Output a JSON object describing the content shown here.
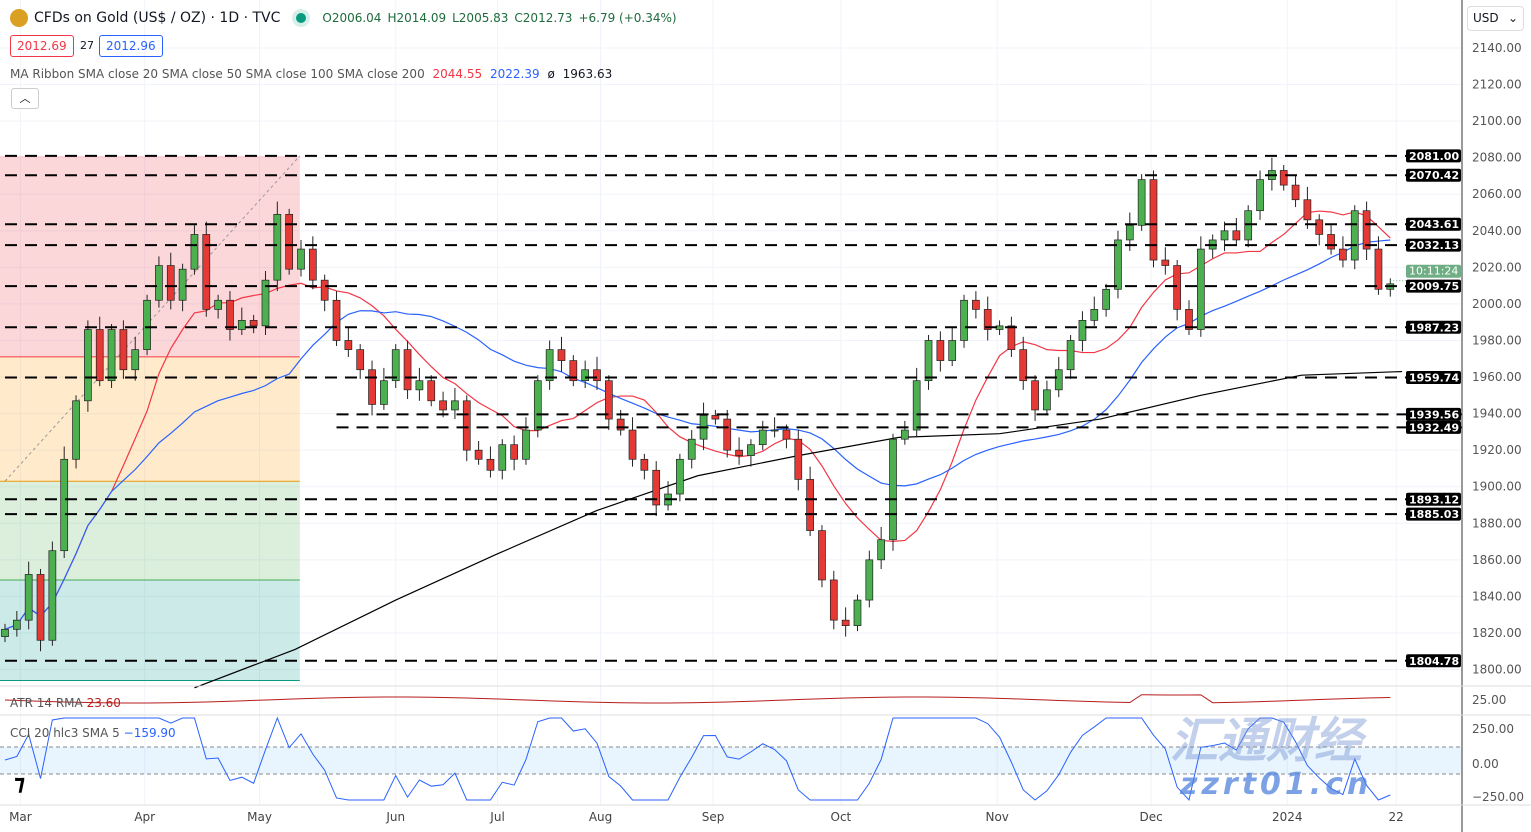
{
  "header": {
    "title": "CFDs on Gold (US$ / OZ) · 1D · TVC",
    "open": "O2006.04",
    "high": "H2014.09",
    "low": "L2005.83",
    "close": "C2012.73",
    "change": "+6.79 (+0.34%)",
    "bid": "2012.69",
    "spread": "27",
    "ask": "2012.96"
  },
  "ma_ribbon": {
    "label": "MA Ribbon SMA close 20 SMA close 50 SMA close 100 SMA close 200",
    "v1": "2044.55",
    "v2": "2022.39",
    "v3": "ø",
    "v4": "1963.63"
  },
  "collapse_icon": "chevron-up",
  "currency": "USD",
  "colors": {
    "up": "#4caf50",
    "down": "#e53935",
    "sma20": "#f23645",
    "sma50": "#2962ff",
    "sma200": "#000000",
    "countdown": "#6fae85"
  },
  "countdown": "10:11:24",
  "atr": {
    "label": "ATR 14 RMA",
    "value": "23.60",
    "axis": "25.00"
  },
  "cci": {
    "label": "CCI 20 hlc3 SMA 5",
    "value": "−159.90",
    "axis": [
      "250.00",
      "0.00",
      "−250.00"
    ]
  },
  "watermark": {
    "text": "zzrt01.cn",
    "cn": "汇通财经"
  },
  "chart_data": {
    "type": "candlestick",
    "ylim": [
      1790,
      2150
    ],
    "y_ticks": [
      2140,
      2120,
      2100,
      2080,
      2060,
      2040,
      2020,
      2000,
      1980,
      1960,
      1940,
      1920,
      1900,
      1880,
      1860,
      1840,
      1820,
      1800
    ],
    "x_ticks": [
      {
        "label": "Mar",
        "i": 1.3
      },
      {
        "label": "Apr",
        "i": 11.8
      },
      {
        "label": "May",
        "i": 21.5
      },
      {
        "label": "Jun",
        "i": 33
      },
      {
        "label": "Jul",
        "i": 41.6
      },
      {
        "label": "Aug",
        "i": 50.3
      },
      {
        "label": "Sep",
        "i": 59.8
      },
      {
        "label": "Oct",
        "i": 70.6
      },
      {
        "label": "Nov",
        "i": 83.8
      },
      {
        "label": "Dec",
        "i": 96.8
      },
      {
        "label": "2024",
        "i": 108.3
      },
      {
        "label": "22",
        "i": 117.5
      }
    ],
    "closes": [
      1822,
      1827,
      1852,
      1816,
      1865,
      1915,
      1947,
      1986,
      1958,
      1986,
      1964,
      1975,
      2002,
      2021,
      2002,
      2019,
      2038,
      1997,
      2002,
      1986,
      1991,
      1988,
      2013,
      2049,
      2019,
      2030,
      2013,
      2002,
      1980,
      1975,
      1964,
      1945,
      1958,
      1975,
      1953,
      1958,
      1947,
      1942,
      1947,
      1920,
      1915,
      1909,
      1923,
      1915,
      1931,
      1958,
      1975,
      1969,
      1958,
      1964,
      1958,
      1937,
      1931,
      1915,
      1909,
      1890,
      1896,
      1915,
      1926,
      1939,
      1937,
      1920,
      1917,
      1923,
      1931,
      1931,
      1926,
      1904,
      1876,
      1849,
      1827,
      1824,
      1838,
      1860,
      1871,
      1926,
      1931,
      1958,
      1980,
      1969,
      1980,
      2002,
      1997,
      1986,
      1988,
      1975,
      1958,
      1942,
      1953,
      1964,
      1980,
      1991,
      1997,
      2008,
      2035,
      2043,
      2068,
      2024,
      2021,
      1997,
      1986,
      2030,
      2035,
      2040,
      2035,
      2051,
      2068,
      2073,
      2065,
      2057,
      2046,
      2038,
      2030,
      2024,
      2051,
      2030,
      2008,
      2011
    ],
    "sma200": [
      [
        16,
        1790
      ],
      [
        24.5,
        1811
      ],
      [
        33,
        1838
      ],
      [
        41.5,
        1863
      ],
      [
        50,
        1887
      ],
      [
        58.5,
        1906
      ],
      [
        67,
        1917
      ],
      [
        75.5,
        1927
      ],
      [
        84,
        1929
      ],
      [
        92.5,
        1937
      ],
      [
        101,
        1950
      ],
      [
        109.5,
        1961
      ],
      [
        118,
        1963
      ]
    ],
    "levels": [
      {
        "v": 2081.0,
        "from": 0
      },
      {
        "v": 2070.42,
        "from": 0
      },
      {
        "v": 2043.61,
        "from": 0
      },
      {
        "v": 2032.13,
        "from": 0
      },
      {
        "v": 2009.75,
        "from": 0
      },
      {
        "v": 1987.23,
        "from": 0
      },
      {
        "v": 1959.74,
        "from": 0
      },
      {
        "v": 1939.56,
        "from": 28
      },
      {
        "v": 1932.49,
        "from": 28
      },
      {
        "v": 1893.12,
        "from": 0
      },
      {
        "v": 1885.03,
        "from": 0
      },
      {
        "v": 1804.78,
        "from": 0
      }
    ],
    "fib_box": {
      "to": 24.9,
      "bands": [
        2081,
        1971,
        1903,
        1849,
        1794
      ]
    }
  }
}
